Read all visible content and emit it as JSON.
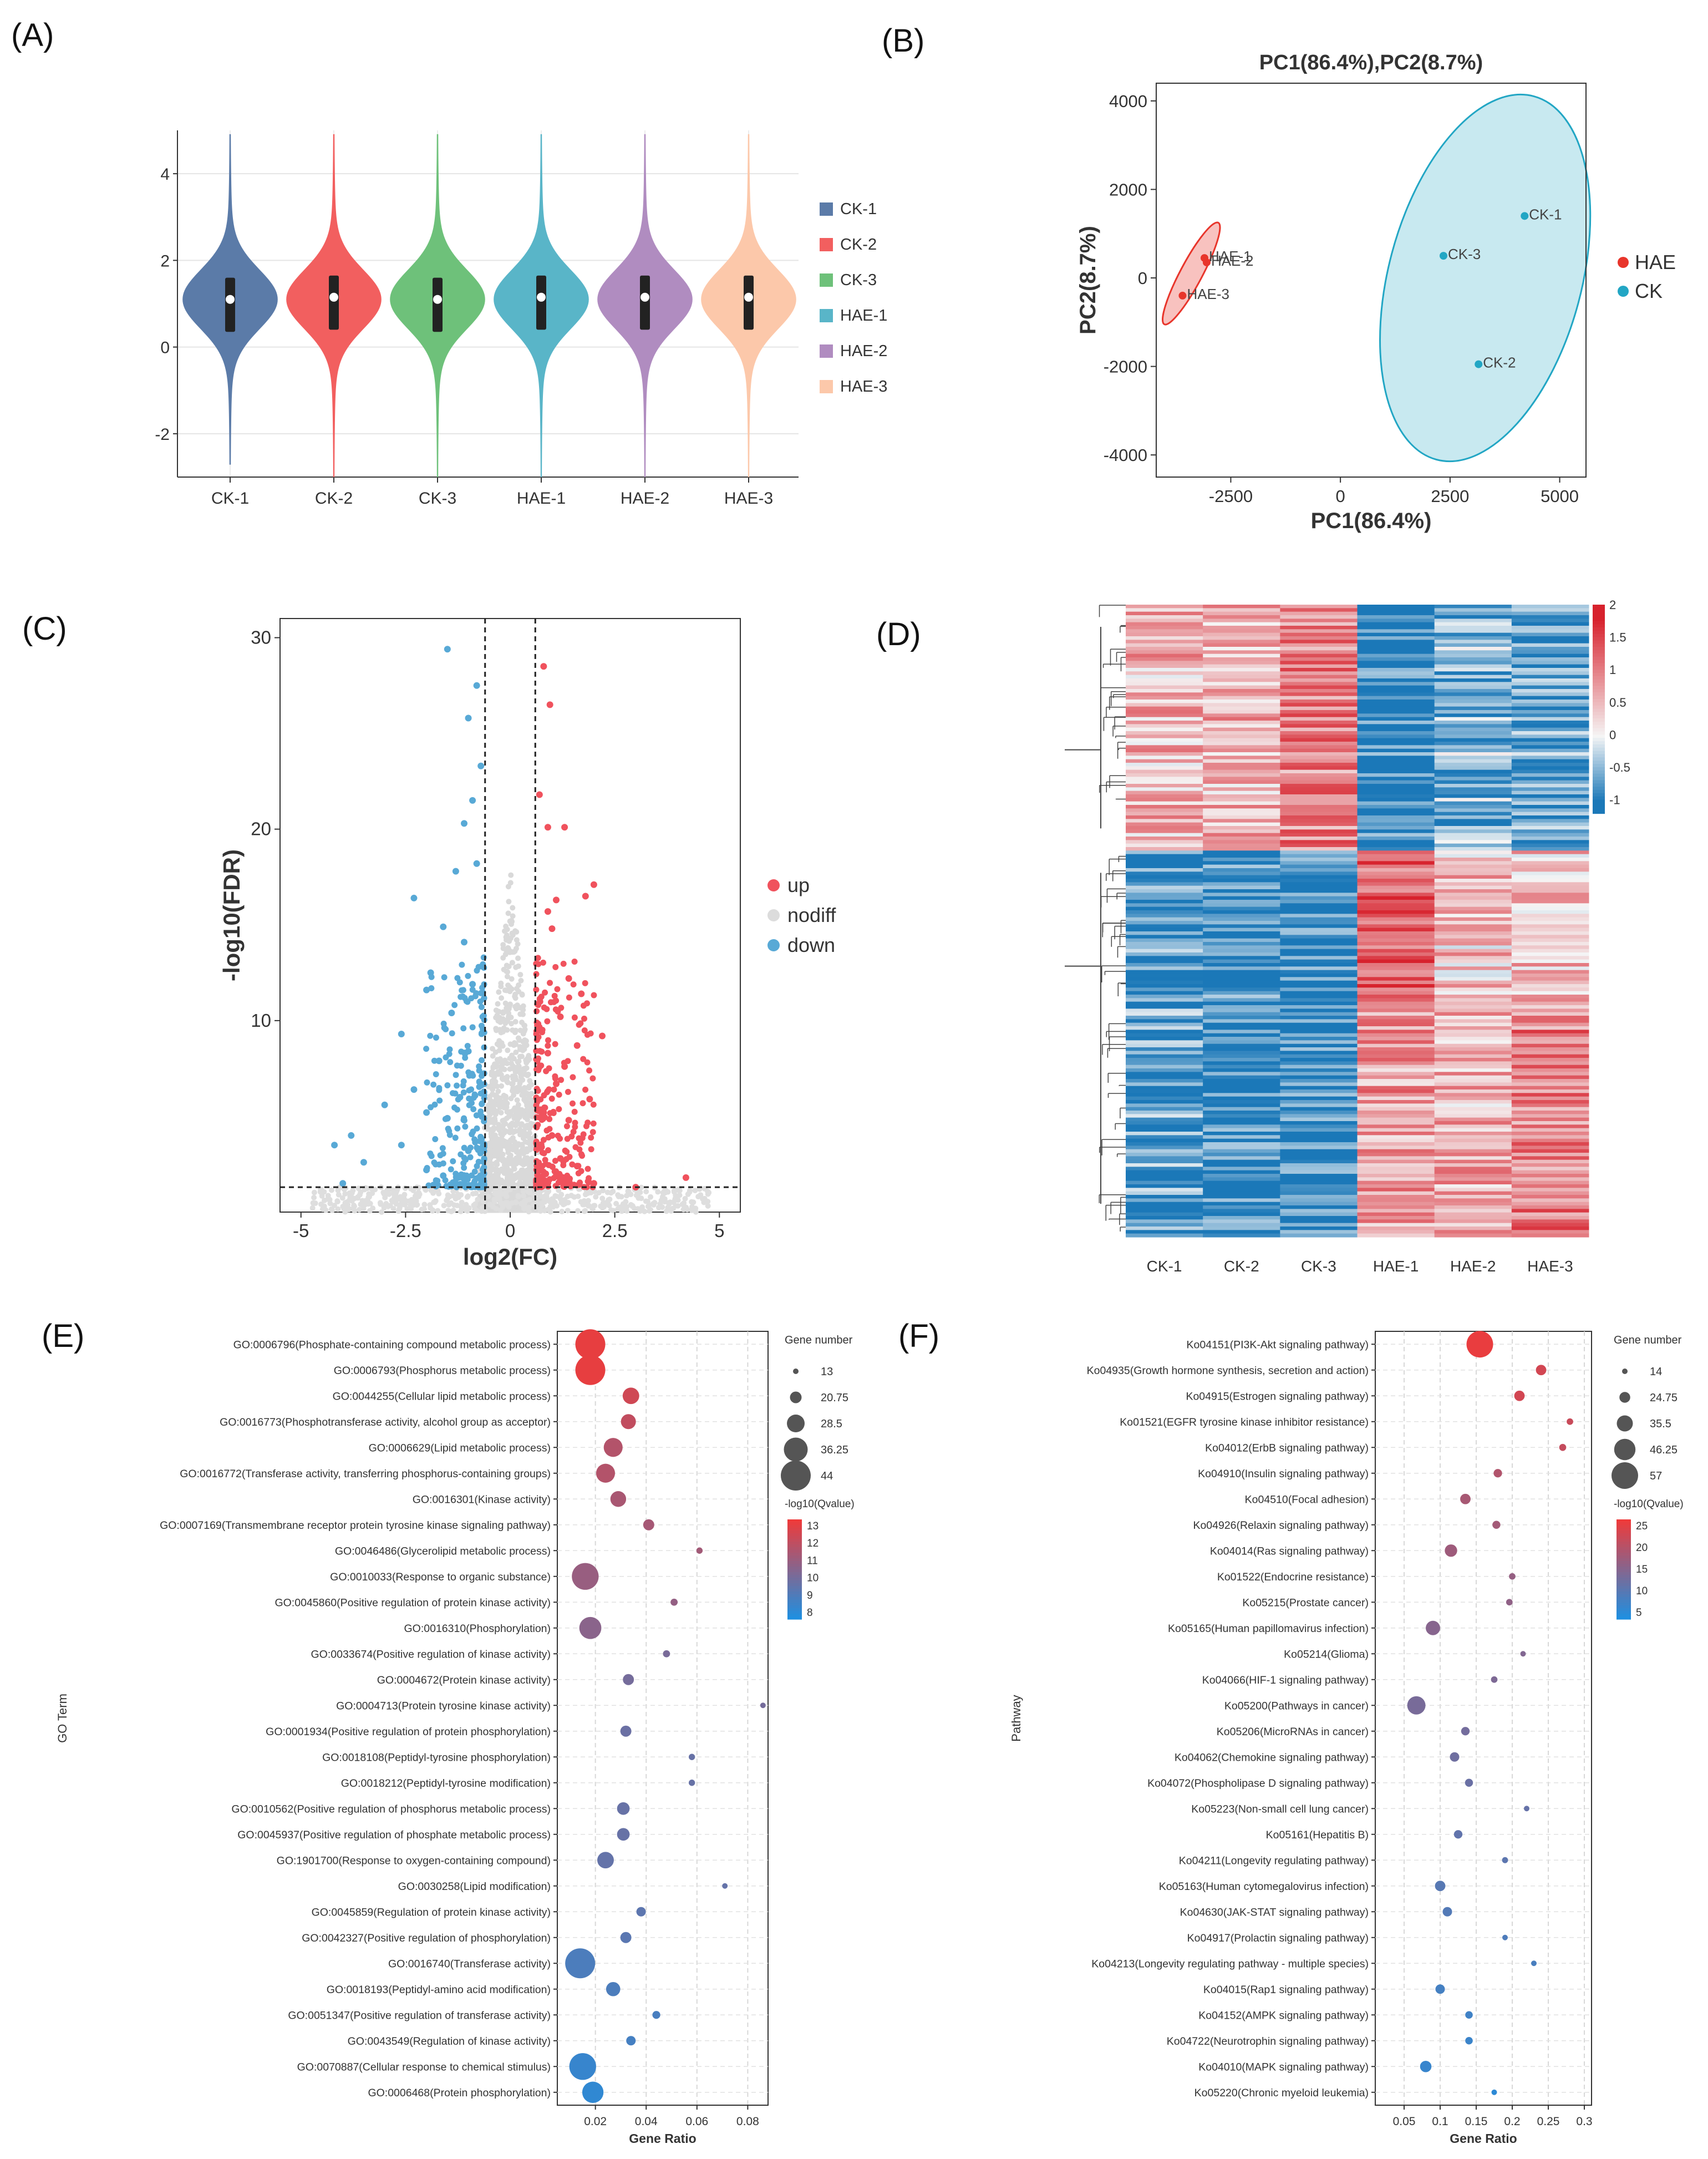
{
  "panels": {
    "A": {
      "label": "(A)"
    },
    "B": {
      "label": "(B)"
    },
    "C": {
      "label": "(C)"
    },
    "D": {
      "label": "(D)"
    },
    "E": {
      "label": "(E)"
    },
    "F": {
      "label": "(F)"
    }
  },
  "chart_data": [
    {
      "id": "A",
      "type": "violin",
      "title": "",
      "categories": [
        "CK-1",
        "CK-2",
        "CK-3",
        "HAE-1",
        "HAE-2",
        "HAE-3"
      ],
      "colors": [
        "#5b7ba8",
        "#f25f5f",
        "#6ec17a",
        "#59b5c8",
        "#b08cc0",
        "#fcc8aa"
      ],
      "median": [
        1.1,
        1.15,
        1.1,
        1.15,
        1.15,
        1.15
      ],
      "q1": [
        0.35,
        0.4,
        0.35,
        0.4,
        0.4,
        0.4
      ],
      "q3": [
        1.6,
        1.65,
        1.6,
        1.65,
        1.65,
        1.65
      ],
      "min": [
        -2.7,
        -3.0,
        -3.0,
        -3.0,
        -3.0,
        -3.0
      ],
      "max": [
        4.9,
        4.9,
        4.9,
        4.9,
        4.9,
        4.9
      ],
      "yticks": [
        "4",
        "2",
        "0",
        "-2"
      ],
      "ylim": [
        -3.0,
        5.0
      ],
      "legend": [
        "CK-1",
        "CK-2",
        "CK-3",
        "HAE-1",
        "HAE-2",
        "HAE-3"
      ]
    },
    {
      "id": "B",
      "type": "scatter",
      "title": "PC1(86.4%),PC2(8.7%)",
      "xlabel": "PC1(86.4%)",
      "ylabel": "PC2(8.7%)",
      "xlim": [
        -4200,
        5600
      ],
      "ylim": [
        -4500,
        4400
      ],
      "xticks": [
        "-2500",
        "0",
        "2500",
        "5000"
      ],
      "xtick_values": [
        -2500,
        0,
        2500,
        5000
      ],
      "yticks": [
        "4000",
        "2000",
        "0",
        "-2000",
        "-4000"
      ],
      "ytick_values": [
        4000,
        2000,
        0,
        -2000,
        -4000
      ],
      "series": [
        {
          "name": "HAE",
          "color": "#e8352b",
          "points": [
            {
              "label": "HAE-1",
              "x": -3100,
              "y": 450
            },
            {
              "label": "HAE-2",
              "x": -3050,
              "y": 350
            },
            {
              "label": "HAE-3",
              "x": -3600,
              "y": -400
            }
          ],
          "ellipse": {
            "cx": -3400,
            "cy": 100,
            "rx": 250,
            "ry": 1300,
            "angle_deg": 28
          }
        },
        {
          "name": "CK",
          "color": "#22a6c4",
          "points": [
            {
              "label": "CK-1",
              "x": 4200,
              "y": 1400
            },
            {
              "label": "CK-3",
              "x": 2350,
              "y": 500
            },
            {
              "label": "CK-2",
              "x": 3150,
              "y": -1950
            }
          ],
          "ellipse": {
            "cx": 3300,
            "cy": 0,
            "rx": 2200,
            "ry": 4250,
            "angle_deg": 15
          }
        }
      ],
      "legend": [
        "HAE",
        "CK"
      ]
    },
    {
      "id": "C",
      "type": "scatter",
      "title": "",
      "xlabel": "log2(FC)",
      "ylabel": "-log10(FDR)",
      "xlim": [
        -5.5,
        5.5
      ],
      "ylim": [
        0,
        31
      ],
      "xticks": [
        "-5",
        "-2.5",
        "0",
        "2.5",
        "5"
      ],
      "xtick_values": [
        -5,
        -2.5,
        0,
        2.5,
        5
      ],
      "yticks": [
        "30",
        "20",
        "10"
      ],
      "ytick_values": [
        30,
        20,
        10
      ],
      "thresholds": {
        "x": [
          -0.6,
          0.6
        ],
        "y": 1.3
      },
      "legend": [
        {
          "name": "up",
          "color": "#f0525d"
        },
        {
          "name": "nodiff",
          "color": "#dcdcdc"
        },
        {
          "name": "down",
          "color": "#58a9d6"
        }
      ],
      "series": [
        {
          "name": "up",
          "points": [
            [
              0.8,
              28.5
            ],
            [
              0.95,
              26.5
            ],
            [
              0.7,
              21.8
            ],
            [
              0.9,
              20.1
            ],
            [
              1.3,
              20.1
            ],
            [
              2.0,
              17.1
            ],
            [
              1.8,
              16.5
            ],
            [
              1.1,
              16.3
            ],
            [
              0.9,
              15.7
            ],
            [
              1.0,
              14.8
            ],
            [
              1.4,
              12.2
            ],
            [
              1.7,
              11.4
            ],
            [
              1.2,
              10.2
            ],
            [
              2.2,
              9.2
            ],
            [
              1.6,
              8.7
            ],
            [
              0.9,
              8.3
            ],
            [
              1.3,
              7.6
            ],
            [
              1.1,
              6.7
            ],
            [
              1.9,
              5.9
            ],
            [
              0.8,
              5.2
            ],
            [
              1.4,
              4.8
            ],
            [
              1.0,
              4.0
            ],
            [
              0.75,
              3.4
            ],
            [
              1.2,
              2.8
            ],
            [
              1.6,
              2.4
            ],
            [
              0.85,
              2.0
            ],
            [
              2.0,
              1.5
            ],
            [
              3.0,
              1.3
            ],
            [
              4.2,
              1.8
            ],
            [
              1.1,
              1.9
            ]
          ]
        },
        {
          "name": "down",
          "points": [
            [
              -1.5,
              29.4
            ],
            [
              -0.8,
              27.5
            ],
            [
              -1.0,
              25.8
            ],
            [
              -0.7,
              23.3
            ],
            [
              -0.9,
              21.5
            ],
            [
              -1.1,
              20.3
            ],
            [
              -0.8,
              18.2
            ],
            [
              -1.3,
              17.8
            ],
            [
              -2.3,
              16.4
            ],
            [
              -1.6,
              14.9
            ],
            [
              -1.1,
              14.1
            ],
            [
              -1.9,
              12.5
            ],
            [
              -0.9,
              11.9
            ],
            [
              -2.0,
              11.6
            ],
            [
              -1.4,
              10.4
            ],
            [
              -2.6,
              9.3
            ],
            [
              -1.0,
              8.4
            ],
            [
              -1.7,
              7.9
            ],
            [
              -2.3,
              6.4
            ],
            [
              -1.2,
              6.0
            ],
            [
              -3.0,
              5.6
            ],
            [
              -2.0,
              5.2
            ],
            [
              -1.5,
              4.9
            ],
            [
              -3.8,
              4.0
            ],
            [
              -2.6,
              3.5
            ],
            [
              -1.0,
              3.2
            ],
            [
              -4.2,
              3.5
            ],
            [
              -3.5,
              2.6
            ],
            [
              -2.0,
              2.2
            ],
            [
              -4.0,
              1.5
            ],
            [
              -1.6,
              1.9
            ]
          ]
        }
      ]
    },
    {
      "id": "D",
      "type": "heatmap",
      "columns": [
        "CK-1",
        "CK-2",
        "CK-3",
        "HAE-1",
        "HAE-2",
        "HAE-3"
      ],
      "colorbar_ticks": [
        "2",
        "1.5",
        "1",
        "0.5",
        "0",
        "-0.5",
        "-1"
      ],
      "colorbar_values": [
        2,
        1.5,
        1,
        0.5,
        0,
        -0.5,
        -1
      ],
      "clusters": [
        {
          "rows": 70,
          "mean": [
            0.55,
            0.6,
            0.95,
            -1.0,
            -0.55,
            -0.7
          ]
        },
        {
          "rows": 110,
          "mean": [
            -0.75,
            -0.95,
            -1.0,
            0.65,
            0.5,
            0.55
          ]
        }
      ]
    },
    {
      "id": "E",
      "type": "scatter",
      "title": "",
      "xlabel": "Gene Ratio",
      "ylabel": "GO Term",
      "xlim": [
        0.005,
        0.088
      ],
      "xticks": [
        "0.02",
        "0.04",
        "0.06",
        "0.08"
      ],
      "xtick_values": [
        0.02,
        0.04,
        0.06,
        0.08
      ],
      "size_legend_title": "Gene number",
      "size_legend": [
        "13",
        "20.75",
        "28.5",
        "36.25",
        "44"
      ],
      "size_values": [
        13,
        20.75,
        28.5,
        36.25,
        44
      ],
      "color_legend_title": "-log10(Qvalue)",
      "color_legend": [
        "13",
        "12",
        "11",
        "10",
        "9",
        "8"
      ],
      "color_range": [
        7.5,
        13.5
      ],
      "terms": [
        {
          "name": "GO:0006796(Phosphate-containing compound metabolic process)",
          "x": 0.018,
          "size": 44,
          "q": 13.3
        },
        {
          "name": "GO:0006793(Phosphorus metabolic process)",
          "x": 0.018,
          "size": 44,
          "q": 13.3
        },
        {
          "name": "GO:0044255(Cellular lipid metabolic process)",
          "x": 0.034,
          "size": 27,
          "q": 12.6
        },
        {
          "name": "GO:0016773(Phosphotransferase activity, alcohol group as acceptor)",
          "x": 0.033,
          "size": 25,
          "q": 12.2
        },
        {
          "name": "GO:0006629(Lipid metabolic process)",
          "x": 0.027,
          "size": 30,
          "q": 11.8
        },
        {
          "name": "GO:0016772(Transferase activity, transferring phosphorus-containing groups)",
          "x": 0.024,
          "size": 30,
          "q": 11.8
        },
        {
          "name": "GO:0016301(Kinase activity)",
          "x": 0.029,
          "size": 26,
          "q": 11.5
        },
        {
          "name": "GO:0007169(Transmembrane receptor protein tyrosine kinase signaling pathway)",
          "x": 0.041,
          "size": 20,
          "q": 11.4
        },
        {
          "name": "GO:0046486(Glycerolipid metabolic process)",
          "x": 0.061,
          "size": 14,
          "q": 11.3
        },
        {
          "name": "GO:0010033(Response to organic substance)",
          "x": 0.016,
          "size": 40,
          "q": 11.0
        },
        {
          "name": "GO:0045860(Positive regulation of protein kinase activity)",
          "x": 0.051,
          "size": 15,
          "q": 10.9
        },
        {
          "name": "GO:0016310(Phosphorylation)",
          "x": 0.018,
          "size": 34,
          "q": 10.6
        },
        {
          "name": "GO:0033674(Positive regulation of kinase activity)",
          "x": 0.048,
          "size": 15,
          "q": 10.1
        },
        {
          "name": "GO:0004672(Protein kinase activity)",
          "x": 0.033,
          "size": 20,
          "q": 10.0
        },
        {
          "name": "GO:0004713(Protein tyrosine kinase activity)",
          "x": 0.086,
          "size": 13,
          "q": 10.0
        },
        {
          "name": "GO:0001934(Positive regulation of protein phosphorylation)",
          "x": 0.032,
          "size": 20,
          "q": 9.7
        },
        {
          "name": "GO:0018108(Peptidyl-tyrosine phosphorylation)",
          "x": 0.058,
          "size": 14,
          "q": 9.6
        },
        {
          "name": "GO:0018212(Peptidyl-tyrosine modification)",
          "x": 0.058,
          "size": 14,
          "q": 9.6
        },
        {
          "name": "GO:0010562(Positive regulation of phosphorus metabolic process)",
          "x": 0.031,
          "size": 22,
          "q": 9.6
        },
        {
          "name": "GO:0045937(Positive regulation of phosphate metabolic process)",
          "x": 0.031,
          "size": 22,
          "q": 9.6
        },
        {
          "name": "GO:1901700(Response to oxygen-containing compound)",
          "x": 0.024,
          "size": 27,
          "q": 9.5
        },
        {
          "name": "GO:0030258(Lipid modification)",
          "x": 0.071,
          "size": 13,
          "q": 9.5
        },
        {
          "name": "GO:0045859(Regulation of protein kinase activity)",
          "x": 0.038,
          "size": 18,
          "q": 9.3
        },
        {
          "name": "GO:0042327(Positive regulation of phosphorylation)",
          "x": 0.032,
          "size": 20,
          "q": 9.2
        },
        {
          "name": "GO:0016740(Transferase activity)",
          "x": 0.014,
          "size": 44,
          "q": 8.8
        },
        {
          "name": "GO:0018193(Peptidyl-amino acid modification)",
          "x": 0.027,
          "size": 24,
          "q": 8.8
        },
        {
          "name": "GO:0051347(Positive regulation of transferase activity)",
          "x": 0.044,
          "size": 16,
          "q": 8.7
        },
        {
          "name": "GO:0043549(Regulation of kinase activity)",
          "x": 0.034,
          "size": 18,
          "q": 8.6
        },
        {
          "name": "GO:0070887(Cellular response to chemical stimulus)",
          "x": 0.015,
          "size": 40,
          "q": 8.2
        },
        {
          "name": "GO:0006468(Protein phosphorylation)",
          "x": 0.019,
          "size": 33,
          "q": 8.0
        }
      ]
    },
    {
      "id": "F",
      "type": "scatter",
      "title": "",
      "xlabel": "Gene Ratio",
      "ylabel": "Pathway",
      "xlim": [
        0.01,
        0.31
      ],
      "xticks": [
        "0.05",
        "0.1",
        "0.15",
        "0.2",
        "0.25",
        "0.3"
      ],
      "xtick_values": [
        0.05,
        0.1,
        0.15,
        0.2,
        0.25,
        0.3
      ],
      "size_legend_title": "Gene number",
      "size_legend": [
        "14",
        "24.75",
        "35.5",
        "46.25",
        "57"
      ],
      "size_values": [
        14,
        24.75,
        35.5,
        46.25,
        57
      ],
      "color_legend_title": "-log10(Qvalue)",
      "color_legend": [
        "25",
        "20",
        "15",
        "10",
        "5"
      ],
      "color_range": [
        4,
        26
      ],
      "terms": [
        {
          "name": "Ko04151(PI3K-Akt signaling pathway)",
          "x": 0.155,
          "size": 57,
          "q": 25.5
        },
        {
          "name": "Ko04935(Growth hormone synthesis, secretion and action)",
          "x": 0.24,
          "size": 24,
          "q": 23
        },
        {
          "name": "Ko04915(Estrogen signaling pathway)",
          "x": 0.21,
          "size": 24,
          "q": 23
        },
        {
          "name": "Ko01521(EGFR tyrosine kinase inhibitor resistance)",
          "x": 0.28,
          "size": 16,
          "q": 22
        },
        {
          "name": "Ko04012(ErbB signaling pathway)",
          "x": 0.27,
          "size": 17,
          "q": 21.5
        },
        {
          "name": "Ko04910(Insulin signaling pathway)",
          "x": 0.18,
          "size": 20,
          "q": 19.5
        },
        {
          "name": "Ko04510(Focal adhesion)",
          "x": 0.135,
          "size": 24,
          "q": 18.5
        },
        {
          "name": "Ko04926(Relaxin signaling pathway)",
          "x": 0.178,
          "size": 19,
          "q": 18
        },
        {
          "name": "Ko04014(Ras signaling pathway)",
          "x": 0.115,
          "size": 28,
          "q": 17.5
        },
        {
          "name": "Ko01522(Endocrine resistance)",
          "x": 0.2,
          "size": 16,
          "q": 16.5
        },
        {
          "name": "Ko05215(Prostate cancer)",
          "x": 0.196,
          "size": 16,
          "q": 16
        },
        {
          "name": "Ko05165(Human papillomavirus infection)",
          "x": 0.09,
          "size": 32,
          "q": 15
        },
        {
          "name": "Ko05214(Glioma)",
          "x": 0.215,
          "size": 14,
          "q": 14.5
        },
        {
          "name": "Ko04066(HIF-1 signaling pathway)",
          "x": 0.175,
          "size": 16,
          "q": 14
        },
        {
          "name": "Ko05200(Pathways in cancer)",
          "x": 0.067,
          "size": 40,
          "q": 13.5
        },
        {
          "name": "Ko05206(MicroRNAs in cancer)",
          "x": 0.135,
          "size": 20,
          "q": 13
        },
        {
          "name": "Ko04062(Chemokine signaling pathway)",
          "x": 0.12,
          "size": 22,
          "q": 12.5
        },
        {
          "name": "Ko04072(Phospholipase D signaling pathway)",
          "x": 0.14,
          "size": 19,
          "q": 12
        },
        {
          "name": "Ko05223(Non-small cell lung cancer)",
          "x": 0.22,
          "size": 14,
          "q": 11.5
        },
        {
          "name": "Ko05161(Hepatitis B)",
          "x": 0.125,
          "size": 20,
          "q": 11
        },
        {
          "name": "Ko04211(Longevity regulating pathway)",
          "x": 0.19,
          "size": 15,
          "q": 10.5
        },
        {
          "name": "Ko05163(Human cytomegalovirus infection)",
          "x": 0.1,
          "size": 24,
          "q": 10
        },
        {
          "name": "Ko04630(JAK-STAT signaling pathway)",
          "x": 0.11,
          "size": 22,
          "q": 9.5
        },
        {
          "name": "Ko04917(Prolactin signaling pathway)",
          "x": 0.19,
          "size": 14,
          "q": 9
        },
        {
          "name": "Ko04213(Longevity regulating pathway - multiple species)",
          "x": 0.23,
          "size": 14,
          "q": 8.5
        },
        {
          "name": "Ko04015(Rap1 signaling pathway)",
          "x": 0.1,
          "size": 22,
          "q": 8
        },
        {
          "name": "Ko04152(AMPK signaling pathway)",
          "x": 0.14,
          "size": 18,
          "q": 7.5
        },
        {
          "name": "Ko04722(Neurotrophin signaling pathway)",
          "x": 0.14,
          "size": 18,
          "q": 7
        },
        {
          "name": "Ko04010(MAPK signaling pathway)",
          "x": 0.08,
          "size": 26,
          "q": 6.5
        },
        {
          "name": "Ko05220(Chronic myeloid leukemia)",
          "x": 0.175,
          "size": 14,
          "q": 5.5
        }
      ]
    }
  ]
}
